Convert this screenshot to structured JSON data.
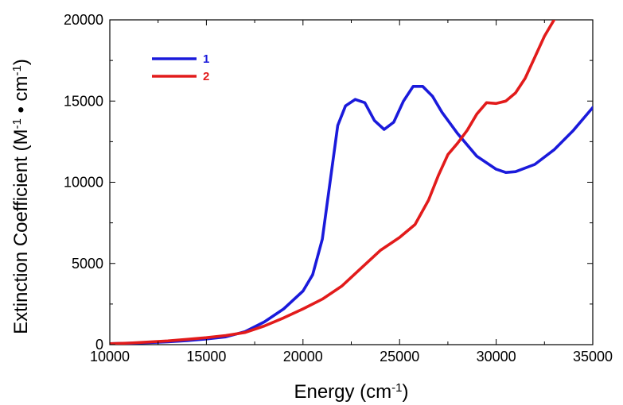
{
  "chart_data": {
    "type": "line",
    "xlabel": "Energy (cm",
    "xlabel_sup": "-1",
    "xlabel_suffix": ")",
    "ylabel_parts": [
      "Extinction Coefficient (M",
      "-1",
      " • cm",
      "-1",
      ")"
    ],
    "xlim": [
      10000,
      35000
    ],
    "ylim": [
      0,
      20000
    ],
    "xticks": [
      10000,
      15000,
      20000,
      25000,
      30000,
      35000
    ],
    "yticks": [
      0,
      5000,
      10000,
      15000,
      20000
    ],
    "grid": false,
    "legend_position": "top-left",
    "series": [
      {
        "name": "1",
        "color": "#1a1adb",
        "points": [
          [
            10000,
            60
          ],
          [
            11000,
            90
          ],
          [
            12000,
            120
          ],
          [
            13000,
            170
          ],
          [
            14000,
            250
          ],
          [
            15000,
            350
          ],
          [
            16000,
            480
          ],
          [
            17000,
            800
          ],
          [
            18000,
            1400
          ],
          [
            19000,
            2200
          ],
          [
            20000,
            3300
          ],
          [
            20500,
            4300
          ],
          [
            21000,
            6500
          ],
          [
            21400,
            10000
          ],
          [
            21800,
            13500
          ],
          [
            22200,
            14700
          ],
          [
            22700,
            15100
          ],
          [
            23200,
            14900
          ],
          [
            23700,
            13800
          ],
          [
            24200,
            13250
          ],
          [
            24700,
            13700
          ],
          [
            25200,
            15000
          ],
          [
            25700,
            15900
          ],
          [
            26200,
            15900
          ],
          [
            26700,
            15300
          ],
          [
            27200,
            14300
          ],
          [
            28000,
            13000
          ],
          [
            29000,
            11600
          ],
          [
            30000,
            10800
          ],
          [
            30500,
            10600
          ],
          [
            31000,
            10650
          ],
          [
            32000,
            11100
          ],
          [
            33000,
            12000
          ],
          [
            34000,
            13200
          ],
          [
            35000,
            14600
          ]
        ]
      },
      {
        "name": "2",
        "color": "#e21b1b",
        "points": [
          [
            10000,
            60
          ],
          [
            11000,
            100
          ],
          [
            12000,
            160
          ],
          [
            13000,
            230
          ],
          [
            14000,
            330
          ],
          [
            15000,
            430
          ],
          [
            16000,
            560
          ],
          [
            17000,
            750
          ],
          [
            18000,
            1150
          ],
          [
            19000,
            1650
          ],
          [
            20000,
            2200
          ],
          [
            21000,
            2800
          ],
          [
            22000,
            3600
          ],
          [
            23000,
            4700
          ],
          [
            24000,
            5800
          ],
          [
            25000,
            6600
          ],
          [
            25800,
            7400
          ],
          [
            26500,
            8900
          ],
          [
            27000,
            10400
          ],
          [
            27500,
            11700
          ],
          [
            28000,
            12400
          ],
          [
            28500,
            13200
          ],
          [
            29000,
            14200
          ],
          [
            29500,
            14900
          ],
          [
            30000,
            14850
          ],
          [
            30500,
            15000
          ],
          [
            31000,
            15500
          ],
          [
            31500,
            16400
          ],
          [
            32000,
            17700
          ],
          [
            32500,
            19000
          ],
          [
            33000,
            20000
          ]
        ]
      }
    ]
  }
}
